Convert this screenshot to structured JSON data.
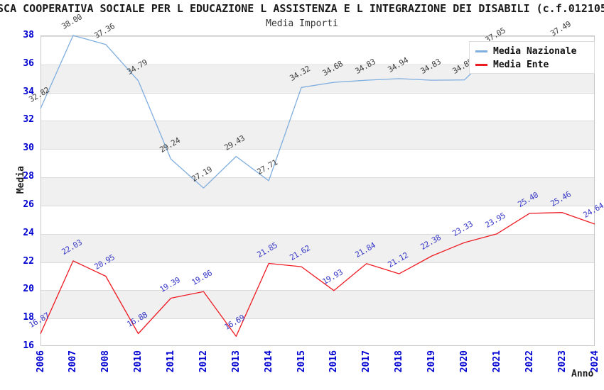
{
  "title": "SCA COOPERATIVA SOCIALE PER L EDUCAZIONE L ASSISTENZA E L INTEGRAZIONE DEI DISABILI (c.f.012105",
  "subtitle": "Media Importi",
  "chart_data": {
    "type": "line",
    "title": "Media Importi",
    "xlabel": "Anno",
    "ylabel": "Media",
    "categories": [
      "2006",
      "2007",
      "2008",
      "2010",
      "2011",
      "2012",
      "2013",
      "2014",
      "2015",
      "2016",
      "2017",
      "2018",
      "2019",
      "2020",
      "2021",
      "2022",
      "2023",
      "2024"
    ],
    "ylim": [
      16,
      38
    ],
    "ytick_step": 2,
    "grid": "horizontal gridlines with alternating gray bands every 2 units",
    "legend_position": "top-right",
    "series": [
      {
        "name": "Media Nazionale",
        "color": "#7faedf",
        "label_color": "#3f3f3f",
        "values": [
          32.82,
          38.0,
          37.36,
          34.79,
          29.24,
          27.19,
          29.43,
          27.71,
          34.32,
          34.68,
          34.83,
          34.94,
          34.83,
          34.85,
          37.05,
          36.0,
          37.49,
          35.5
        ],
        "labels": [
          "32.82",
          "38.00",
          "37.36",
          "34.79",
          "29.24",
          "27.19",
          "29.43",
          "27.71",
          "34.32",
          "34.68",
          "34.83",
          "34.94",
          "34.83",
          "34.85",
          "37.05",
          null,
          "37.49",
          null
        ]
      },
      {
        "name": "Media Ente",
        "color": "#ed1c24",
        "label_color": "#3838c8",
        "values": [
          16.87,
          22.03,
          20.95,
          16.88,
          19.39,
          19.86,
          16.69,
          21.85,
          21.62,
          19.93,
          21.84,
          21.12,
          22.38,
          23.33,
          23.95,
          25.4,
          25.46,
          24.64
        ],
        "labels": [
          "16.87",
          "22.03",
          "20.95",
          "16.88",
          "19.39",
          "19.86",
          "16.69",
          "21.85",
          "21.62",
          "19.93",
          "21.84",
          "21.12",
          "22.38",
          "23.33",
          "23.95",
          "25.40",
          "25.46",
          "24.64"
        ]
      }
    ]
  }
}
